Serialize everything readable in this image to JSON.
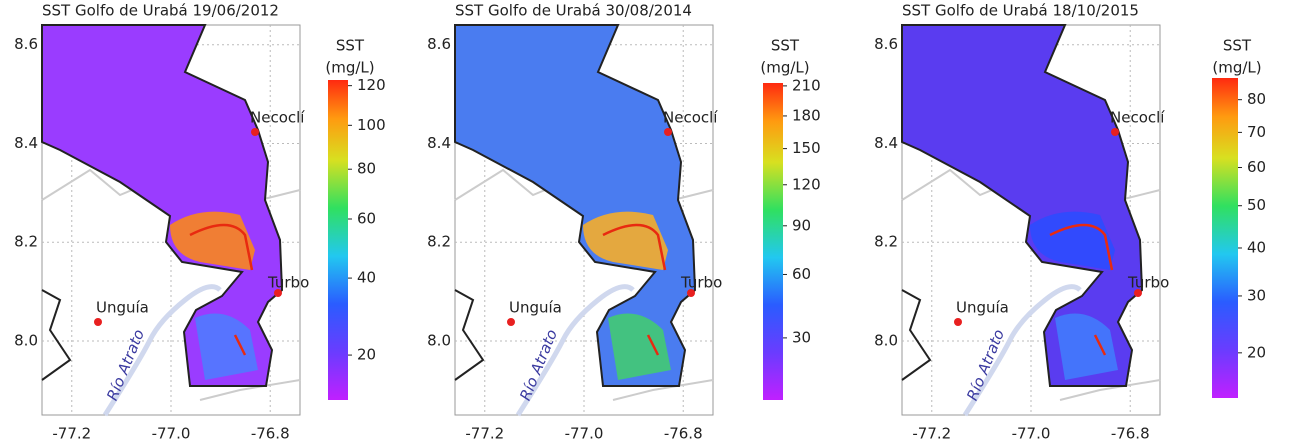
{
  "panels": [
    {
      "title": "SST Golfo de Urabá 19/06/2012",
      "xlim": [
        -77.26,
        -76.74
      ],
      "ylim": [
        7.85,
        8.64
      ],
      "xticks": [
        -77.2,
        {
          "value": -77,
          "label": "-77.0"
        },
        -76.8
      ],
      "yticks": [
        {
          "value": 8,
          "label": "8.0"
        },
        8.2,
        8.4,
        8.6
      ],
      "colorbar": {
        "title": [
          "SST",
          "(mg/L)"
        ],
        "scale": "sqrt",
        "clim": [
          11.5,
          123
        ],
        "ticks": [
          20,
          40,
          60,
          80,
          100,
          120
        ]
      },
      "places": [
        "Necoclí",
        "Turbo",
        "Unguía"
      ],
      "river": "Río Atrato"
    },
    {
      "title": "SST Golfo de Urabá 30/08/2014",
      "xlim": [
        -77.26,
        -76.74
      ],
      "ylim": [
        7.85,
        8.64
      ],
      "xticks": [
        -77.2,
        {
          "value": -77,
          "label": "-77.0"
        },
        -76.8
      ],
      "yticks": [
        {
          "value": 8,
          "label": "8.0"
        },
        8.2,
        8.4,
        8.6
      ],
      "colorbar": {
        "title": [
          "SST",
          "(mg/L)"
        ],
        "scale": "sqrt",
        "clim": [
          10.6,
          213
        ],
        "ticks": [
          30,
          60,
          90,
          120,
          150,
          180,
          210
        ]
      },
      "places": [
        "Necoclí",
        "Turbo",
        "Unguía"
      ],
      "river": "Río Atrato"
    },
    {
      "title": "SST Golfo de Urabá 18/10/2015",
      "xlim": [
        -77.26,
        -76.74
      ],
      "ylim": [
        7.85,
        8.64
      ],
      "xticks": [
        -77.2,
        {
          "value": -77,
          "label": "-77.0"
        },
        -76.8
      ],
      "yticks": [
        {
          "value": 8,
          "label": "8.0"
        },
        8.2,
        8.4,
        8.6
      ],
      "colorbar": {
        "title": [
          "SST",
          "(mg/L)"
        ],
        "scale": "sqrt",
        "clim": [
          13.5,
          87
        ],
        "ticks": [
          20,
          30,
          40,
          50,
          60,
          70,
          80
        ]
      },
      "places": [
        "Necoclí",
        "Turbo",
        "Unguía"
      ],
      "river": "Río Atrato"
    }
  ]
}
